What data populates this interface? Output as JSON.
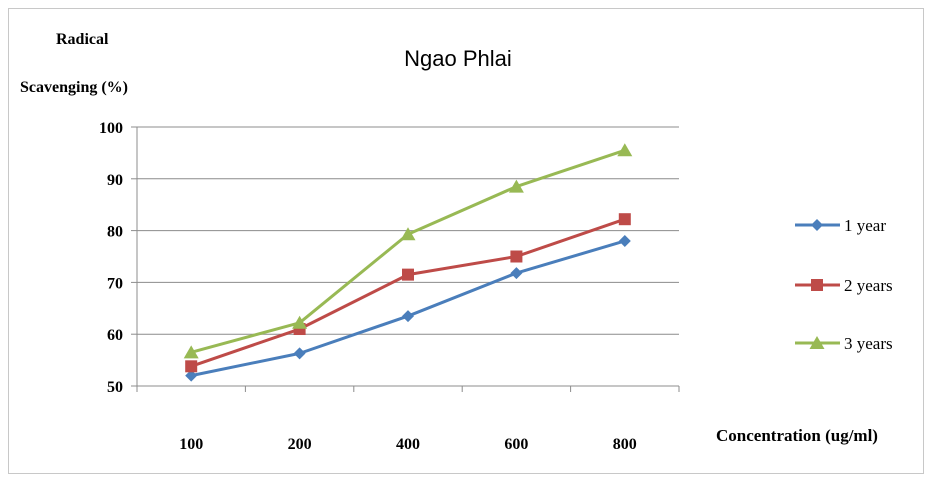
{
  "chart_data": {
    "type": "line",
    "title": "Ngao Phlai",
    "ylabel_line1": "Radical",
    "ylabel_line2": "Scavenging (%)",
    "xlabel": "Concentration (ug/ml)",
    "categories": [
      "100",
      "200",
      "400",
      "600",
      "800"
    ],
    "ylim": [
      50,
      100
    ],
    "yticks": [
      50,
      60,
      70,
      80,
      90,
      100
    ],
    "grid": true,
    "legend_position": "right",
    "series": [
      {
        "name": "1 year",
        "color": "#4a7ebb",
        "marker": "diamond",
        "values": [
          52.0,
          56.3,
          63.5,
          71.8,
          78.0
        ]
      },
      {
        "name": "2 years",
        "color": "#be4b48",
        "marker": "square",
        "values": [
          53.8,
          61.0,
          71.5,
          75.0,
          82.2
        ]
      },
      {
        "name": "3 years",
        "color": "#98b954",
        "marker": "triangle",
        "values": [
          56.5,
          62.2,
          79.3,
          88.5,
          95.5
        ]
      }
    ]
  }
}
